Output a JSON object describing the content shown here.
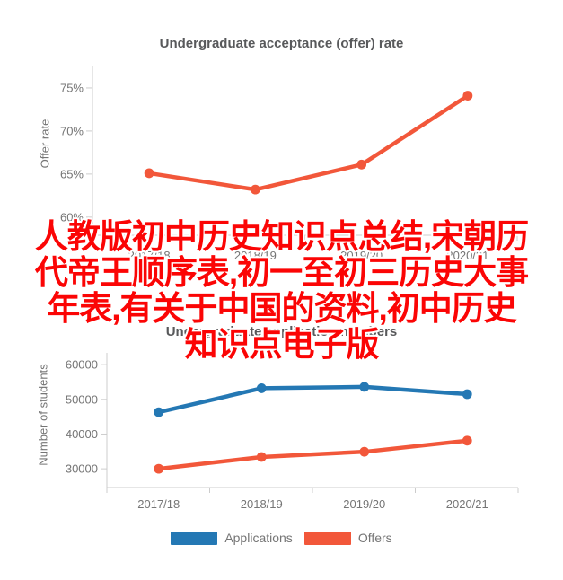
{
  "overlay": {
    "full_text": "人教版初中历史知识点总结,宋朝历代帝王顺序表,初一至初三历史大事年表,有关于中国的资料,初中历史知识点电子版",
    "lines": [
      "人教版初中历史知识点总结,宋朝历",
      "代帝王顺序表,初一至初三历史大事",
      "年表,有关于中国的资料,初中历史",
      "知识点电子版"
    ],
    "color": "#fb0505"
  },
  "chart_data": [
    {
      "type": "line",
      "title": "Undergraduate acceptance (offer) rate",
      "ylabel": "Offer rate",
      "xlabel": "",
      "categories": [
        "2017/18",
        "2018/19",
        "2019/20",
        "2020/21"
      ],
      "series": [
        {
          "name": "Offer rate",
          "color": "#f2573a",
          "values": [
            65.1,
            63.2,
            66.1,
            74.1
          ]
        }
      ],
      "y_ticks": [
        60,
        65,
        70,
        75
      ],
      "y_tick_suffix": "%",
      "ylim": [
        57.9,
        77.6
      ],
      "grid": false,
      "legend_position": "none"
    },
    {
      "type": "line",
      "title": "Undergraduate application numbers",
      "ylabel": "Number of students",
      "xlabel": "",
      "categories": [
        "2017/18",
        "2018/19",
        "2019/20",
        "2020/21"
      ],
      "series": [
        {
          "name": "Applications",
          "color": "#2478b4",
          "values": [
            46300,
            53200,
            53600,
            51500
          ]
        },
        {
          "name": "Offers",
          "color": "#f2573a",
          "values": [
            30000,
            33400,
            34900,
            38100
          ]
        }
      ],
      "y_ticks": [
        30000,
        40000,
        50000,
        60000
      ],
      "y_tick_suffix": "",
      "ylim": [
        24600,
        63400
      ],
      "grid": false,
      "legend_position": "bottom"
    }
  ],
  "colors": {
    "axis": "#cccccc",
    "tick_text": "#757575",
    "title_text": "#58595b",
    "overlay_red": "#fb0505"
  }
}
